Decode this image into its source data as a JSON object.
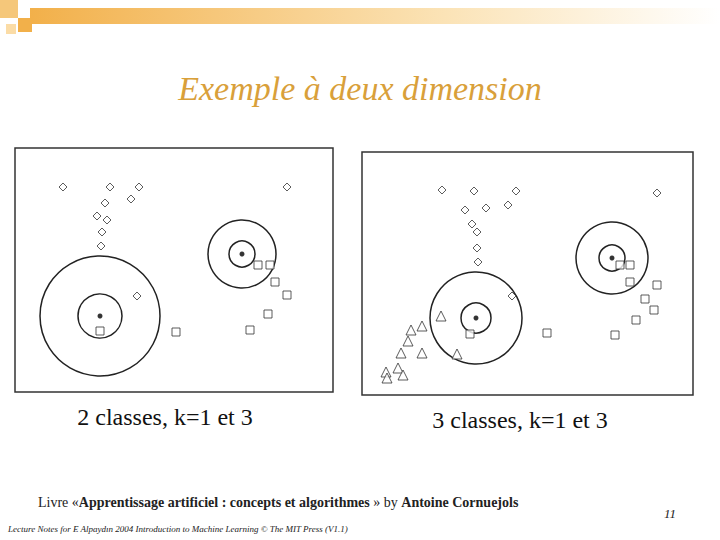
{
  "slide": {
    "title": "Exemple à deux dimension",
    "source": [
      {
        "text": "Livre «",
        "bold": false
      },
      {
        "text": "Apprentissage artificiel : concepts et algorithmes",
        "bold": true
      },
      {
        "text": " » by ",
        "bold": false
      },
      {
        "text": "Antoine Cornuejols",
        "bold": true
      }
    ],
    "footer": "Lecture Notes for E Alpaydın 2004 Introduction to Machine Learning © The MIT Press (V1.1)",
    "page": 11
  },
  "chart_data": [
    {
      "type": "scatter",
      "title": "2 classes, k=1 et 3",
      "xlim": [
        0,
        318
      ],
      "ylim": [
        0,
        244
      ],
      "tick_labels": false,
      "grid": false,
      "series": [
        {
          "marker": "diamond",
          "color": "#333333",
          "points": [
            [
              48,
              205
            ],
            [
              95,
              205
            ],
            [
              124,
              205
            ],
            [
              272,
              205
            ],
            [
              116,
              193
            ],
            [
              90,
              189
            ],
            [
              82,
              176
            ],
            [
              92,
              172
            ],
            [
              87,
              160
            ],
            [
              86,
              146
            ],
            [
              122,
              96
            ]
          ]
        },
        {
          "marker": "square",
          "color": "#333333",
          "points": [
            [
              243,
              127
            ],
            [
              255,
              127
            ],
            [
              260,
              110
            ],
            [
              272,
              97
            ],
            [
              253,
              78
            ],
            [
              235,
              62
            ],
            [
              161,
              60
            ],
            [
              85,
              61
            ]
          ]
        }
      ],
      "neighbourhoods": [
        {
          "center": [
            227,
            138
          ],
          "radii": [
            13,
            34
          ]
        },
        {
          "center": [
            85,
            76
          ],
          "radii": [
            22,
            60
          ]
        }
      ]
    },
    {
      "type": "scatter",
      "title": "3 classes, k=1 et 3",
      "xlim": [
        0,
        331
      ],
      "ylim": [
        0,
        243
      ],
      "tick_labels": false,
      "grid": false,
      "series": [
        {
          "marker": "diamond",
          "color": "#333333",
          "points": [
            [
              80,
              205
            ],
            [
              112,
              204
            ],
            [
              154,
              204
            ],
            [
              295,
              202
            ],
            [
              146,
              190
            ],
            [
              103,
              185
            ],
            [
              124,
              187
            ],
            [
              110,
              171
            ],
            [
              115,
              163
            ],
            [
              115,
              147
            ],
            [
              116,
              133
            ],
            [
              150,
              99
            ]
          ]
        },
        {
          "marker": "square",
          "color": "#333333",
          "points": [
            [
              258,
              130
            ],
            [
              268,
              130
            ],
            [
              268,
              113
            ],
            [
              295,
              110
            ],
            [
              283,
              96
            ],
            [
              292,
              85
            ],
            [
              274,
              75
            ],
            [
              253,
              60
            ],
            [
              185,
              62
            ],
            [
              108,
              61
            ]
          ]
        },
        {
          "marker": "triangle",
          "color": "#333333",
          "points": [
            [
              49,
              65
            ],
            [
              60,
              69
            ],
            [
              79,
              79
            ],
            [
              46,
              54
            ],
            [
              39,
              42
            ],
            [
              60,
              42
            ],
            [
              36,
              27
            ],
            [
              24,
              23
            ],
            [
              41,
              20
            ],
            [
              25,
              17
            ],
            [
              95,
              41
            ]
          ]
        }
      ],
      "neighbourhoods": [
        {
          "center": [
            250,
            137
          ],
          "radii": [
            13,
            36
          ]
        },
        {
          "center": [
            114,
            77
          ],
          "radii": [
            15,
            46
          ]
        }
      ]
    }
  ]
}
